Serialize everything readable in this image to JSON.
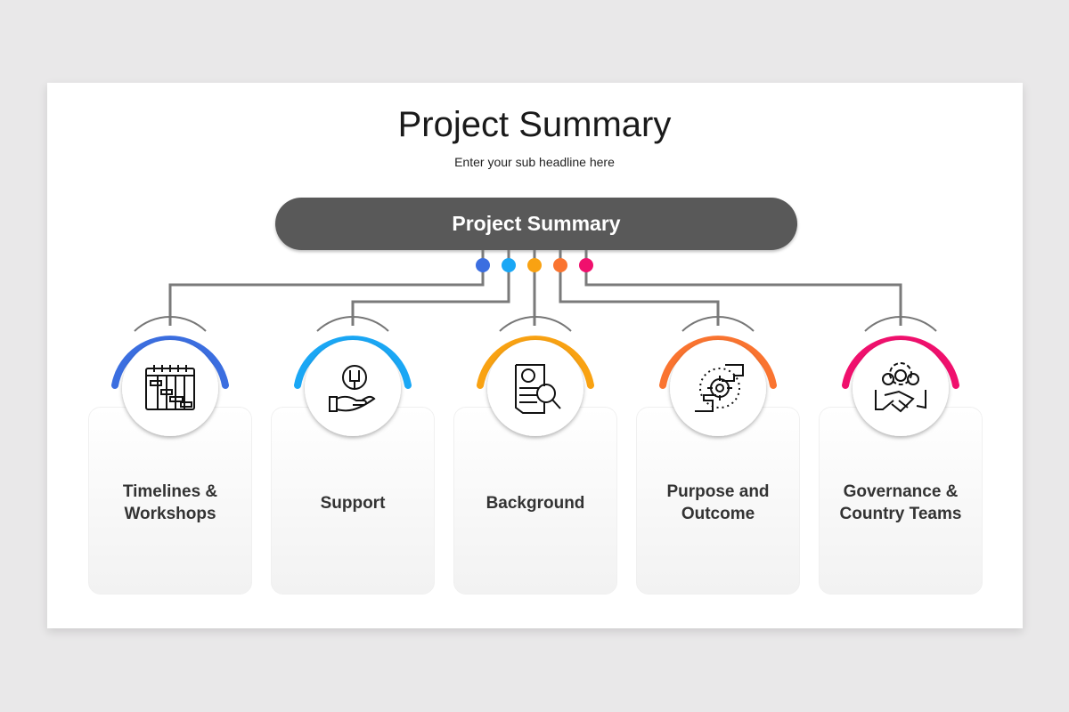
{
  "header": {
    "title": "Project Summary",
    "subtitle": "Enter your sub headline here"
  },
  "hub": {
    "label": "Project Summary",
    "color": "#595959"
  },
  "items": [
    {
      "label": "Timelines &\nWorkshops",
      "icon": "gantt-calendar-icon",
      "color": "#3b6ee0"
    },
    {
      "label": "Support",
      "icon": "hand-gear-wrench-icon",
      "color": "#1aa7f5"
    },
    {
      "label": "Background",
      "icon": "profile-document-search-icon",
      "color": "#f9a212"
    },
    {
      "label": "Purpose and\nOutcome",
      "icon": "hands-target-icon",
      "color": "#fa7430"
    },
    {
      "label": "Governance &\nCountry Teams",
      "icon": "team-handshake-icon",
      "color": "#f0106d"
    }
  ]
}
